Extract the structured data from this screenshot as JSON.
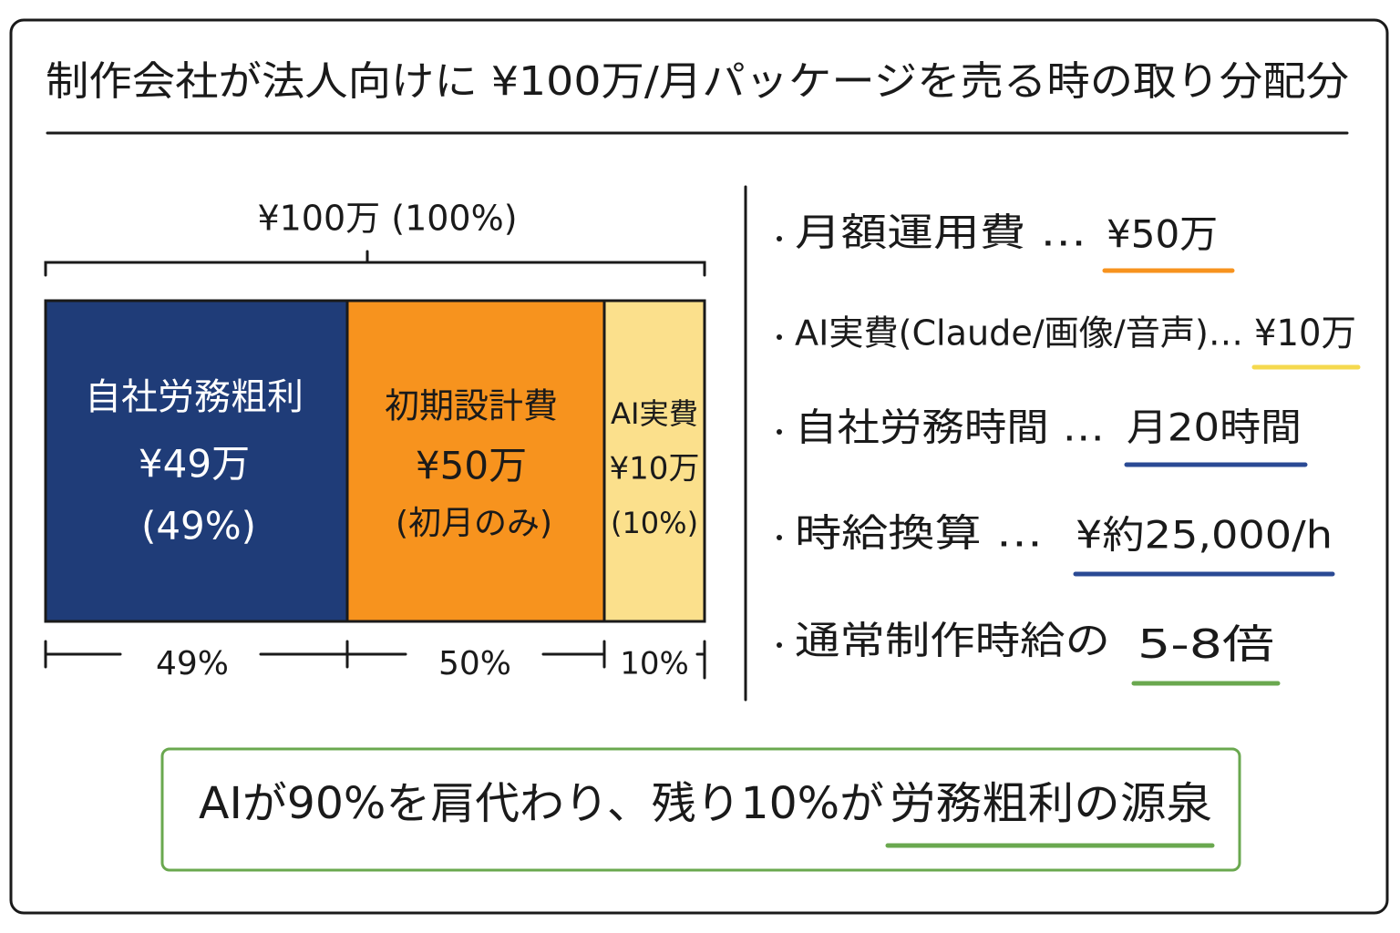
{
  "header": {
    "title": "制作会社が法人向けに ¥100万/月パッケージを売る時の取り分配分"
  },
  "breakdown": {
    "total_label": "¥100万 (100%)",
    "segments": [
      {
        "name": "自社労務粗利",
        "amount": "¥49万",
        "note": "(49%)"
      },
      {
        "name": "初期設計費",
        "amount": "¥50万",
        "note": "(初月のみ)"
      },
      {
        "name": "AI実費",
        "amount": "¥10万",
        "note": "(10%)"
      }
    ],
    "scale_labels": [
      "49%",
      "50%",
      "10%"
    ]
  },
  "facts": [
    {
      "label": "月額運用費 …",
      "value": "¥50万"
    },
    {
      "label": "AI実費(Claude/画像/音声)…",
      "value": "¥10万"
    },
    {
      "label": "自社労務時間 …",
      "value": "月20時間"
    },
    {
      "label": "時給換算 …",
      "value": "¥約25,000/h"
    },
    {
      "label": "通常制作時給の",
      "value": "5-8倍"
    }
  ],
  "footer": {
    "text": "AIが90%を肩代わり、残り10%が",
    "highlight": "労務粗利の源泉"
  }
}
